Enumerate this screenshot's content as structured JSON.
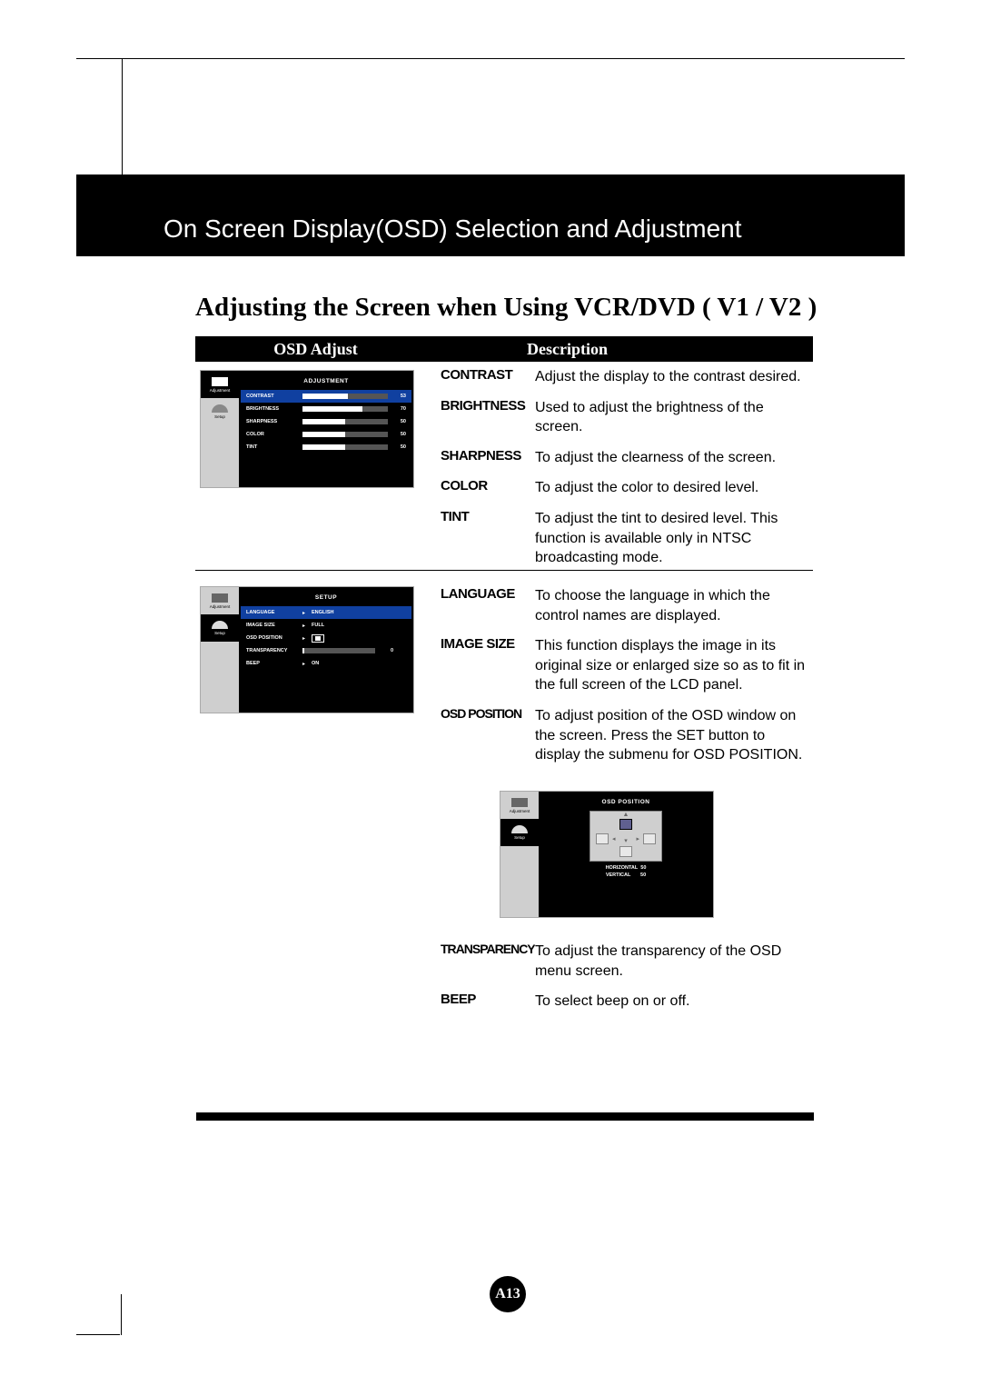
{
  "band_title": "On Screen Display(OSD) Selection and Adjustment",
  "section_title": "Adjusting the Screen when Using VCR/DVD ( V1 / V2 )",
  "header": {
    "left": "OSD Adjust",
    "right": "Description"
  },
  "osd1": {
    "title": "ADJUSTMENT",
    "tabs": [
      {
        "label": "Adjustment",
        "active": true
      },
      {
        "label": "Setup",
        "active": false
      }
    ],
    "rows": [
      {
        "label": "CONTRAST",
        "value": 53,
        "fill_pct": 53,
        "hl": true
      },
      {
        "label": "BRIGHTNESS",
        "value": 70,
        "fill_pct": 70,
        "hl": false
      },
      {
        "label": "SHARPNESS",
        "value": 50,
        "fill_pct": 50,
        "hl": false
      },
      {
        "label": "COLOR",
        "value": 50,
        "fill_pct": 50,
        "hl": false
      },
      {
        "label": "TINT",
        "value": 50,
        "fill_pct": 50,
        "hl": false
      }
    ]
  },
  "osd2": {
    "title": "SETUP",
    "tabs": [
      {
        "label": "Adjustment",
        "active": false
      },
      {
        "label": "Setup",
        "active": true
      }
    ],
    "rows": [
      {
        "label": "LANGUAGE",
        "text": "ENGLISH",
        "hl": true
      },
      {
        "label": "IMAGE SIZE",
        "text": "FULL"
      },
      {
        "label": "OSD POSITION",
        "icon": true
      },
      {
        "label": "TRANSPARENCY",
        "bar": true,
        "value": 0,
        "fill_pct": 2
      },
      {
        "label": "BEEP",
        "text": "ON"
      }
    ]
  },
  "osd3": {
    "title": "OSD POSITION",
    "tabs": [
      {
        "label": "Adjustment",
        "active": false
      },
      {
        "label": "Setup",
        "active": true
      }
    ],
    "legend": {
      "h_label": "HORIZONTAL",
      "h_val": "50",
      "v_label": "VERTICAL",
      "v_val": "50"
    }
  },
  "desc_top": [
    {
      "label": "CONTRAST",
      "text": "Adjust the display to the contrast desired."
    },
    {
      "label": "BRIGHTNESS",
      "text": "Used to adjust the brightness of the screen."
    },
    {
      "label": "SHARPNESS",
      "text": "To adjust the clearness of the screen."
    },
    {
      "label": "COLOR",
      "text": "To adjust the color to desired level."
    },
    {
      "label": "TINT",
      "text": "To adjust the tint to desired level. This function is available only in NTSC broadcasting mode."
    }
  ],
  "desc_bottom_a": [
    {
      "label": "LANGUAGE",
      "text": "To choose the language in which the control names are displayed."
    },
    {
      "label": "IMAGE SIZE",
      "text": "This function displays the image in its original size or enlarged size so as to fit in the full screen of the LCD panel."
    },
    {
      "label": "OSD POSITION",
      "cond": true,
      "text": "To adjust position of the OSD window on the screen. Press the SET button to display the submenu for OSD POSITION."
    }
  ],
  "desc_bottom_b": [
    {
      "label": "TRANSPARENCY",
      "cond": true,
      "text": "To adjust the transparency of the OSD menu screen."
    },
    {
      "label": "BEEP",
      "text": "To select beep on or off."
    }
  ],
  "page_number": "A13"
}
